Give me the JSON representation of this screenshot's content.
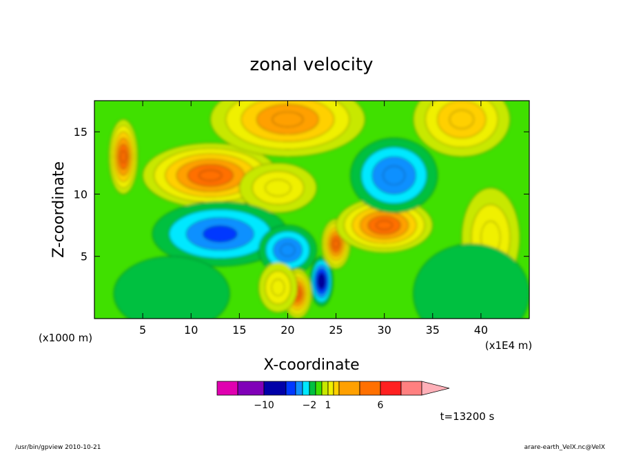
{
  "chart_data": {
    "type": "heatmap",
    "title": "zonal velocity",
    "xlabel": "X-coordinate",
    "ylabel": "Z-coordinate",
    "x_units": "(x1E4 m)",
    "y_units": "(x1000 m)",
    "xlim": [
      0,
      45
    ],
    "ylim": [
      0,
      17.5
    ],
    "x_ticks": [
      5,
      10,
      15,
      20,
      25,
      30,
      35,
      40
    ],
    "y_ticks": [
      5,
      10,
      15
    ],
    "colorbar": {
      "levels": [
        -12,
        -10,
        -8,
        -6,
        -4,
        -2,
        -1,
        0,
        1,
        2,
        3,
        4,
        6,
        8,
        10
      ],
      "colors": [
        "#e000b0",
        "#8000b8",
        "#0000a8",
        "#0038ff",
        "#1090ff",
        "#00e8ff",
        "#00c040",
        "#40e000",
        "#c8e800",
        "#f0f000",
        "#ffd000",
        "#ffa000",
        "#ff7000",
        "#ff2020",
        "#ff8080",
        "#ffb0b8"
      ],
      "labeled_ticks": [
        -10,
        -2,
        1,
        6
      ]
    },
    "features": [
      {
        "x": 12,
        "z": 11.5,
        "sx": 7,
        "sz": 1.3,
        "value": 6
      },
      {
        "x": 19,
        "z": 10.5,
        "sx": 4,
        "sz": 1.0,
        "value": 2
      },
      {
        "x": 13,
        "z": 6.8,
        "sx": 7,
        "sz": 1.3,
        "value": -6
      },
      {
        "x": 20,
        "z": 5.5,
        "sx": 3,
        "sz": 1.0,
        "value": -5
      },
      {
        "x": 23.5,
        "z": 3.0,
        "sx": 1.2,
        "sz": 1.0,
        "value": -9
      },
      {
        "x": 21,
        "z": 2.0,
        "sx": 1.5,
        "sz": 1.0,
        "value": 6
      },
      {
        "x": 25,
        "z": 6.0,
        "sx": 1.5,
        "sz": 1.0,
        "value": 5
      },
      {
        "x": 30,
        "z": 7.5,
        "sx": 5,
        "sz": 1.1,
        "value": 6
      },
      {
        "x": 31,
        "z": 11.5,
        "sx": 4.5,
        "sz": 1.5,
        "value": -5
      },
      {
        "x": 41,
        "z": 6.5,
        "sx": 3,
        "sz": 2,
        "value": 2
      },
      {
        "x": 39,
        "z": 2.0,
        "sx": 6,
        "sz": 2,
        "value": -1
      },
      {
        "x": 8,
        "z": 2.0,
        "sx": 6,
        "sz": 1.5,
        "value": -1
      },
      {
        "x": 20,
        "z": 16,
        "sx": 8,
        "sz": 1.5,
        "value": 4
      },
      {
        "x": 38,
        "z": 16,
        "sx": 5,
        "sz": 1.5,
        "value": 3
      },
      {
        "x": 3,
        "z": 13,
        "sx": 1.5,
        "sz": 1.5,
        "value": 5
      },
      {
        "x": 19,
        "z": 2.5,
        "sx": 2,
        "sz": 1.0,
        "value": 2
      }
    ],
    "annotations": {
      "time": "t=13200 s",
      "footer_left": "/usr/bin/gpview  2010-10-21",
      "footer_right": "arare-earth_VelX.nc@VelX"
    }
  }
}
